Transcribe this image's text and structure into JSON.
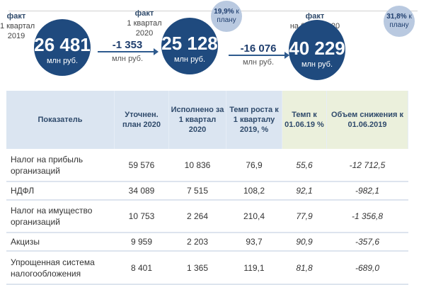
{
  "summary": {
    "fact2019": {
      "label": [
        "факт",
        "1 квартал",
        "2019"
      ],
      "value": "26 481",
      "unit": "млн руб."
    },
    "delta1": {
      "value": "-1 353",
      "unit": "млн руб."
    },
    "fact2020q1": {
      "label": [
        "факт",
        "1 квартал",
        "2020"
      ],
      "value": "25 128",
      "unit": "млн руб.",
      "badge_pct": "19,9%",
      "badge_suffix": "к",
      "badge_text": "плану"
    },
    "delta2": {
      "value": "-16 076",
      "unit": "млн руб."
    },
    "fact2020jun": {
      "label": [
        "факт",
        "на 01.06.2020"
      ],
      "value": "40 229",
      "unit": "млн руб.",
      "badge_pct": "31,8%",
      "badge_suffix": "к",
      "badge_text": "плану"
    }
  },
  "colors": {
    "circle": "#1f4a7e",
    "badge": "#b9c9e0",
    "header": "#dbe5f1",
    "header_highlight": "#ebf0dc"
  },
  "table": {
    "headers": [
      "Показатель",
      "Уточнен. план 2020",
      "Исполнено за 1 квартал 2020",
      "Темп роста к 1 кварталу 2019, %",
      "Темп к 01.06.19 %",
      "Объем снижения к 01.06.2019"
    ],
    "rows": [
      [
        "Налог на прибыль организаций",
        "59 576",
        "10 836",
        "76,9",
        "55,6",
        "-12 712,5"
      ],
      [
        "НДФЛ",
        "34 089",
        "7 515",
        "108,2",
        "92,1",
        "-982,1"
      ],
      [
        "Налог на имущество организаций",
        "10 753",
        "2 264",
        "210,4",
        "77,9",
        "-1 356,8"
      ],
      [
        "Акцизы",
        "9 959",
        "2 203",
        "93,7",
        "90,9",
        "-357,6"
      ],
      [
        "Упрощенная система налогообложения",
        "8 401",
        "1 365",
        "119,1",
        "81,8",
        "-689,0"
      ]
    ]
  }
}
